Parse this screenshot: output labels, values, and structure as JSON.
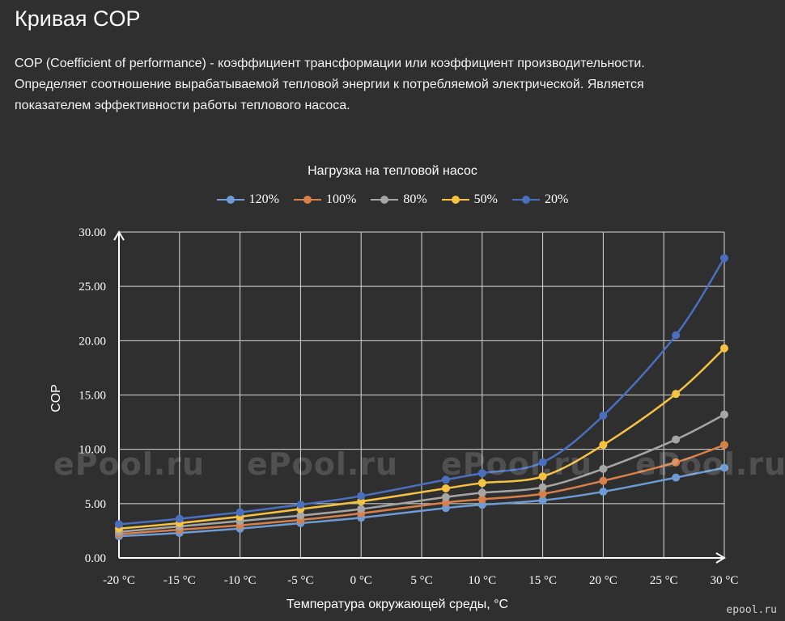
{
  "page": {
    "title": "Кривая COP",
    "description_lines": [
      "COP (Coefficient of performance) - коэффициент трансформации или коэффициент производительности.",
      "Определяет соотношение вырабатываемой тепловой энергии к потребляемой электрической. Является",
      "показателем эффективности работы теплового насоса."
    ],
    "watermark": "ePool.ru",
    "corner_mark": "epool.ru"
  },
  "chart_data": {
    "type": "line",
    "title": "Нагрузка на тепловой насос",
    "xlabel": "Температура окружающей среды, °C",
    "ylabel": "COP",
    "categories": [
      "-20 °C",
      "-15 °C",
      "-10 °C",
      "-5 °C",
      "0 °C",
      "5 °C",
      "10 °C",
      "15 °C",
      "20 °C",
      "25 °C",
      "30 °C"
    ],
    "y_ticks": [
      "0.00",
      "5.00",
      "10.00",
      "15.00",
      "20.00",
      "25.00",
      "30.00"
    ],
    "ylim": [
      0,
      30
    ],
    "xlim": [
      -20,
      30
    ],
    "grid": true,
    "legend_position": "top-center",
    "series": [
      {
        "name": "120%",
        "color": "#6e9bd4",
        "x": [
          -20,
          -15,
          -10,
          -5,
          0,
          7,
          10,
          15,
          20,
          26,
          30
        ],
        "y": [
          2.0,
          2.3,
          2.7,
          3.2,
          3.7,
          4.6,
          4.9,
          5.3,
          6.1,
          7.4,
          8.3
        ]
      },
      {
        "name": "100%",
        "color": "#d8804a",
        "x": [
          -20,
          -15,
          -10,
          -5,
          0,
          7,
          10,
          15,
          20,
          26,
          30
        ],
        "y": [
          2.2,
          2.6,
          3.0,
          3.5,
          4.1,
          5.1,
          5.4,
          5.9,
          7.1,
          8.8,
          10.4
        ]
      },
      {
        "name": "80%",
        "color": "#a5a5a5",
        "x": [
          -20,
          -15,
          -10,
          -5,
          0,
          7,
          10,
          15,
          20,
          26,
          30
        ],
        "y": [
          2.4,
          2.9,
          3.4,
          3.9,
          4.5,
          5.6,
          6.0,
          6.5,
          8.2,
          10.9,
          13.2
        ]
      },
      {
        "name": "50%",
        "color": "#f5c242",
        "x": [
          -20,
          -15,
          -10,
          -5,
          0,
          7,
          10,
          15,
          20,
          26,
          30
        ],
        "y": [
          2.7,
          3.2,
          3.8,
          4.5,
          5.2,
          6.4,
          6.9,
          7.5,
          10.4,
          15.1,
          19.3
        ]
      },
      {
        "name": "20%",
        "color": "#4a6fbf",
        "x": [
          -20,
          -15,
          -10,
          -5,
          0,
          7,
          10,
          15,
          20,
          26,
          30
        ],
        "y": [
          3.1,
          3.6,
          4.2,
          4.9,
          5.7,
          7.2,
          7.8,
          8.8,
          13.1,
          20.5,
          27.6
        ]
      }
    ]
  }
}
